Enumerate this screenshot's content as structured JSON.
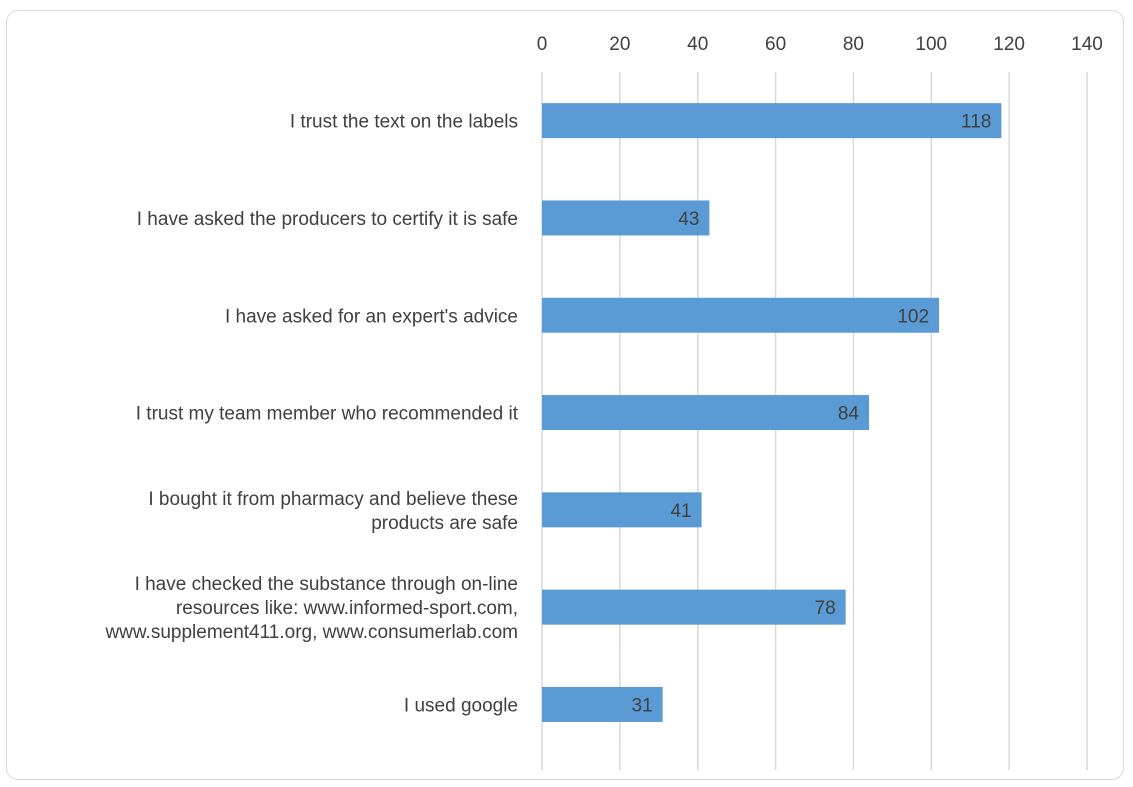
{
  "chart_data": {
    "type": "bar",
    "orientation": "horizontal",
    "title": "",
    "xlabel": "",
    "ylabel": "",
    "xlim": [
      0,
      140
    ],
    "x_ticks": [
      0,
      20,
      40,
      60,
      80,
      100,
      120,
      140
    ],
    "x_axis_position": "top",
    "grid": true,
    "legend": "none",
    "bar_color": "#5b9bd5",
    "categories": [
      [
        "I trust the text on the labels"
      ],
      [
        "I have asked the producers to certify it is safe"
      ],
      [
        "I have asked for an expert's advice"
      ],
      [
        "I trust my team member who recommended it"
      ],
      [
        "I bought it from pharmacy and believe these",
        "products are safe"
      ],
      [
        "I have checked the substance through on-line",
        "resources like: www.informed-sport.com,",
        "www.supplement411.org, www.consumerlab.com"
      ],
      [
        "I used google"
      ]
    ],
    "values": [
      118,
      43,
      102,
      84,
      41,
      78,
      31
    ],
    "data_labels": [
      "118",
      "43",
      "102",
      "84",
      "41",
      "78",
      "31"
    ]
  }
}
